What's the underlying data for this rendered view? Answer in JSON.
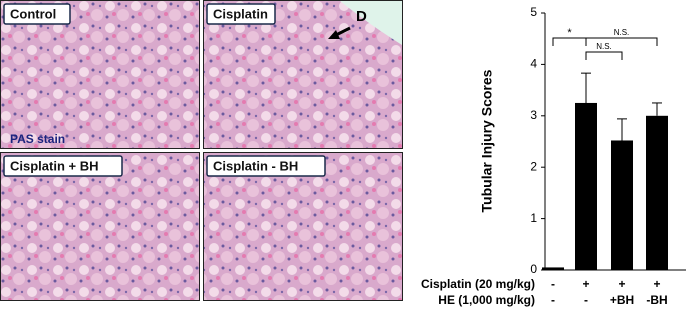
{
  "panels": [
    {
      "label": "Control"
    },
    {
      "label": "Cisplatin"
    },
    {
      "label": "Cisplatin + BH"
    },
    {
      "label": "Cisplatin - BH"
    }
  ],
  "stain_label": "PAS stain",
  "arrow_label": "D",
  "chart_data": {
    "type": "bar",
    "ylabel": "Tubular Injury Scores",
    "values": [
      0.05,
      3.25,
      2.52,
      3.0
    ],
    "errors": [
      0,
      0.58,
      0.42,
      0.25
    ],
    "color": "#000000",
    "ylim": [
      0,
      5
    ],
    "yticks": [
      0,
      1,
      2,
      3,
      4,
      5
    ],
    "x_label_rows": [
      {
        "label": "Cisplatin (20 mg/kg)",
        "values": [
          "-",
          "+",
          "+",
          "+"
        ]
      },
      {
        "label": "HE (1,000 mg/kg)",
        "values": [
          "-",
          "-",
          "+BH",
          "-BH"
        ]
      }
    ],
    "annotations": [
      "*",
      "N.S.",
      "N.S."
    ]
  }
}
